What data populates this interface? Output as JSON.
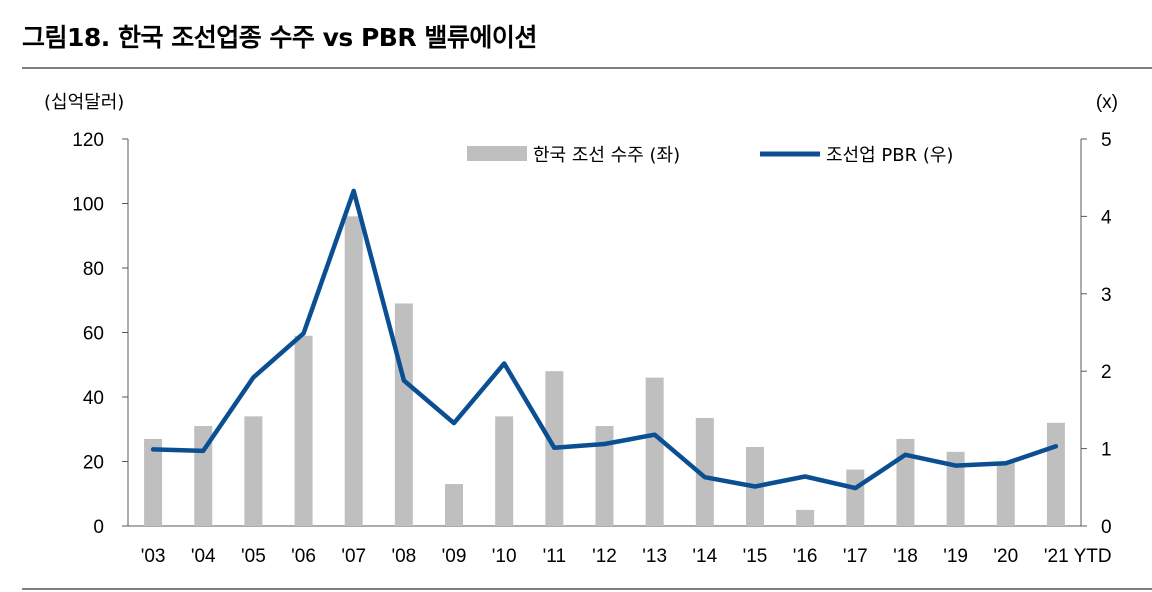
{
  "title": "그림18. 한국 조선업종 수주 vs PBR 밸류에이션",
  "chart_data": {
    "type": "bar",
    "categories": [
      "'03",
      "'04",
      "'05",
      "'06",
      "'07",
      "'08",
      "'09",
      "'10",
      "'11",
      "'12",
      "'13",
      "'14",
      "'15",
      "'16",
      "'17",
      "'18",
      "'19",
      "'20",
      "'21 YTD"
    ],
    "series": [
      {
        "name": "한국 조선 수주 (좌)",
        "type": "bar",
        "axis": "left",
        "color": "#bfbfbf",
        "values": [
          27,
          31,
          34,
          59,
          96,
          69,
          13,
          34,
          48,
          31,
          46,
          33.5,
          24.5,
          5,
          17.5,
          27,
          23,
          20,
          32
        ]
      },
      {
        "name": "조선업 PBR (우)",
        "type": "line",
        "axis": "right",
        "color": "#0b4f93",
        "values": [
          0.99,
          0.97,
          1.92,
          2.49,
          4.33,
          1.88,
          1.33,
          2.1,
          1.01,
          1.06,
          1.18,
          0.63,
          0.51,
          0.64,
          0.49,
          0.92,
          0.78,
          0.81,
          1.03
        ]
      }
    ],
    "y_left": {
      "label": "(십억달러)",
      "ylim": [
        0,
        120
      ],
      "ticks": [
        "0",
        "20",
        "40",
        "60",
        "80",
        "100",
        "120"
      ]
    },
    "y_right": {
      "label": "(x)",
      "ylim": [
        0,
        5
      ],
      "ticks": [
        "0",
        "1",
        "2",
        "3",
        "4",
        "5"
      ]
    },
    "grid": false,
    "legend": "top-right"
  }
}
